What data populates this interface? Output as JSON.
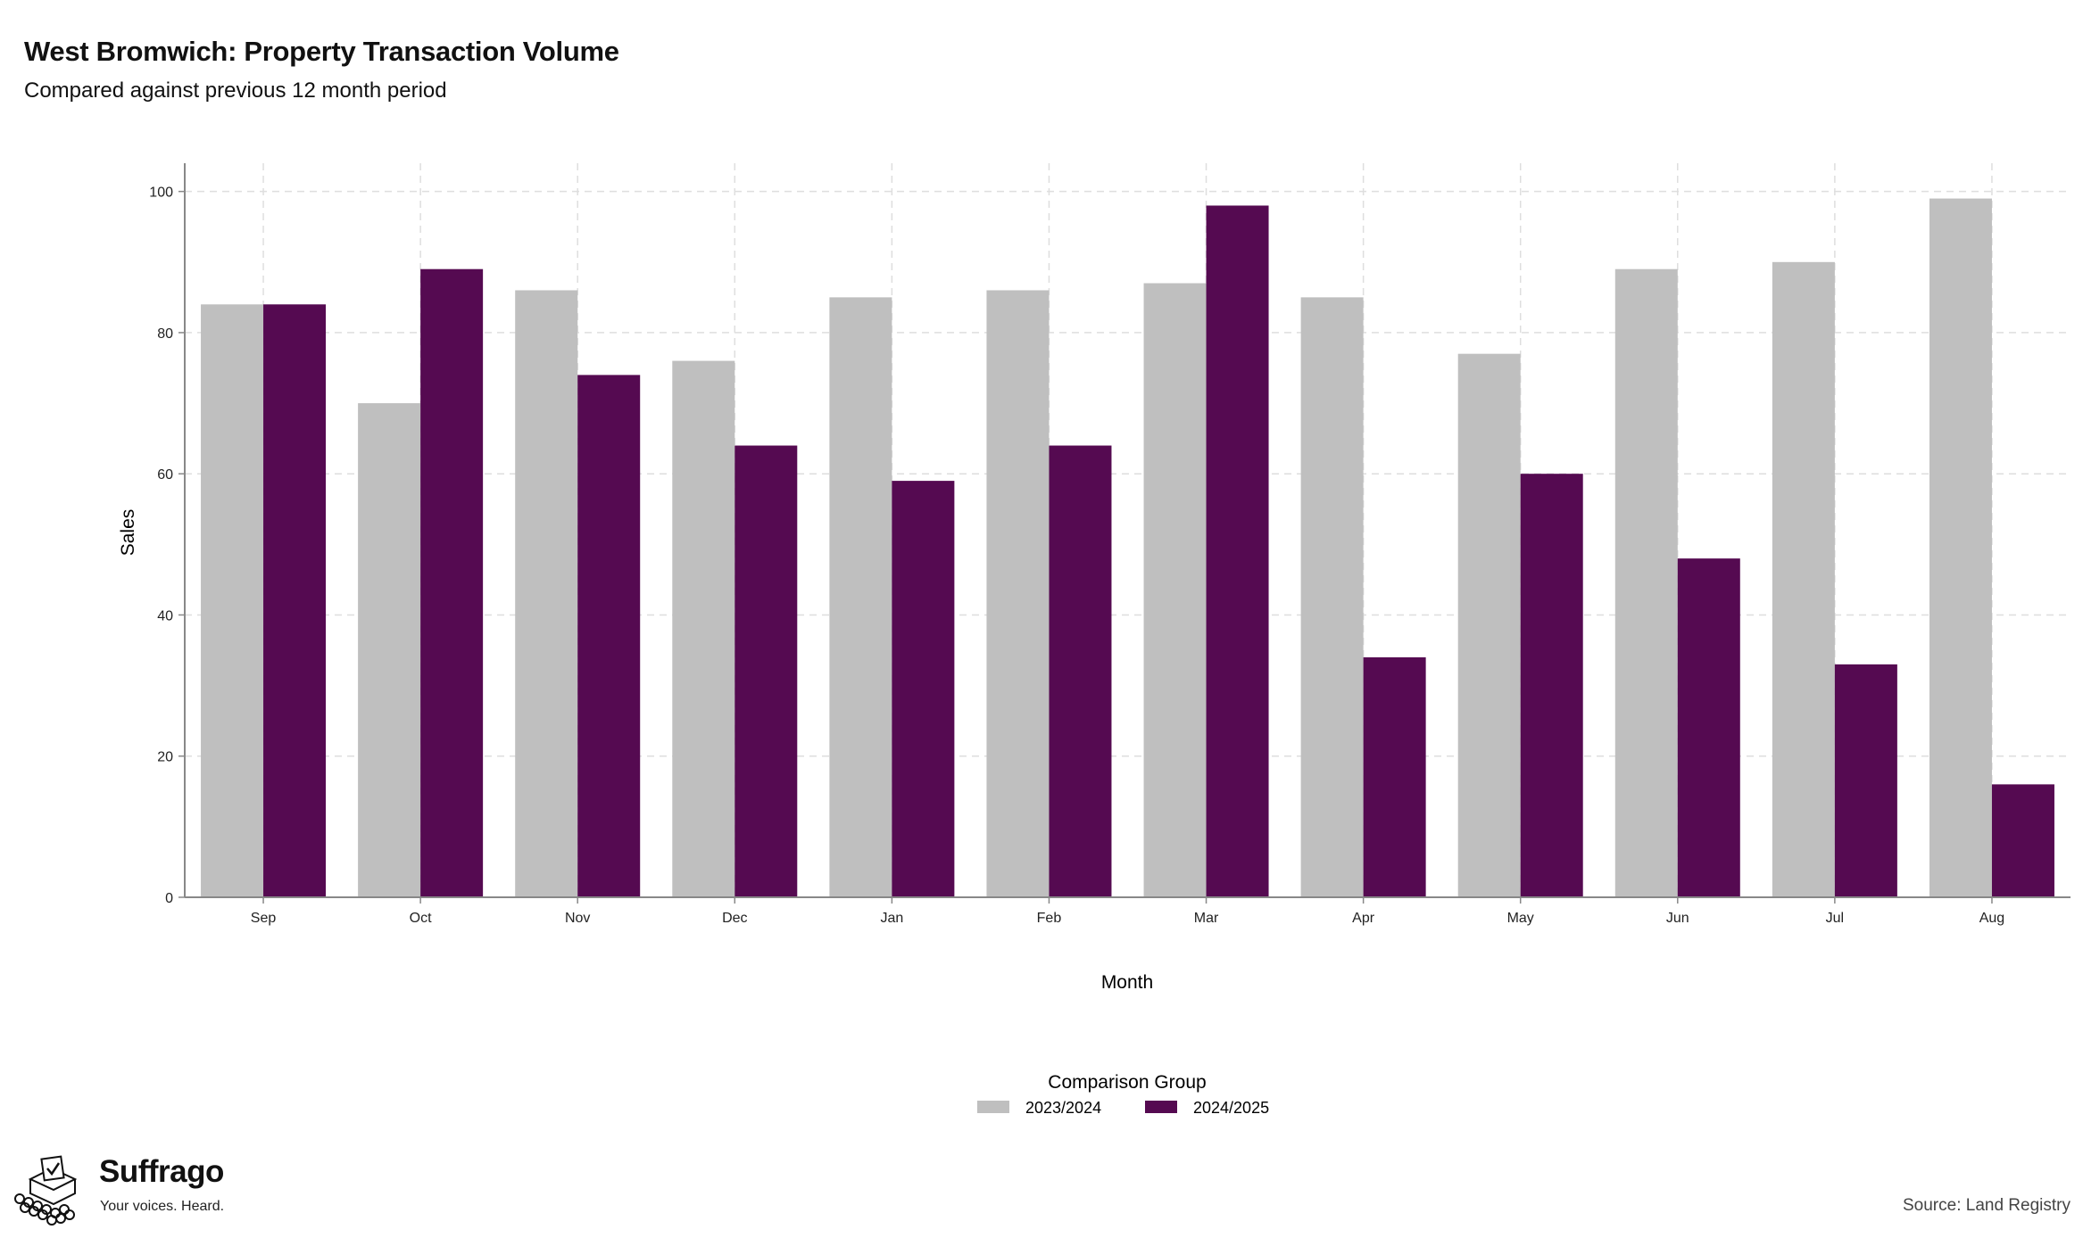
{
  "header": {
    "title": "West Bromwich: Property Transaction Volume",
    "subtitle": "Compared against previous 12 month period"
  },
  "colors": {
    "series_2023_2024": "#bfbfbf",
    "series_2024_2025": "#550a51",
    "grid": "#dedede",
    "axis": "#888888"
  },
  "chart_data": {
    "type": "bar",
    "title": "West Bromwich: Property Transaction Volume",
    "subtitle": "Compared against previous 12 month period",
    "xlabel": "Month",
    "ylabel": "Sales",
    "ylim": [
      0,
      104
    ],
    "yticks": [
      0,
      20,
      40,
      60,
      80,
      100
    ],
    "grid": true,
    "legend_title": "Comparison Group",
    "legend_position": "bottom",
    "categories": [
      "Sep",
      "Oct",
      "Nov",
      "Dec",
      "Jan",
      "Feb",
      "Mar",
      "Apr",
      "May",
      "Jun",
      "Jul",
      "Aug"
    ],
    "series": [
      {
        "name": "2023/2024",
        "color": "#bfbfbf",
        "values": [
          84,
          70,
          86,
          76,
          85,
          86,
          87,
          85,
          77,
          89,
          90,
          99
        ]
      },
      {
        "name": "2024/2025",
        "color": "#550a51",
        "values": [
          84,
          89,
          74,
          64,
          59,
          64,
          98,
          34,
          60,
          48,
          33,
          16
        ]
      }
    ]
  },
  "brand": {
    "name": "Suffrago",
    "tagline": "Your voices. Heard.",
    "icon": "ballot-box-icon"
  },
  "footer": {
    "source": "Source: Land Registry"
  }
}
